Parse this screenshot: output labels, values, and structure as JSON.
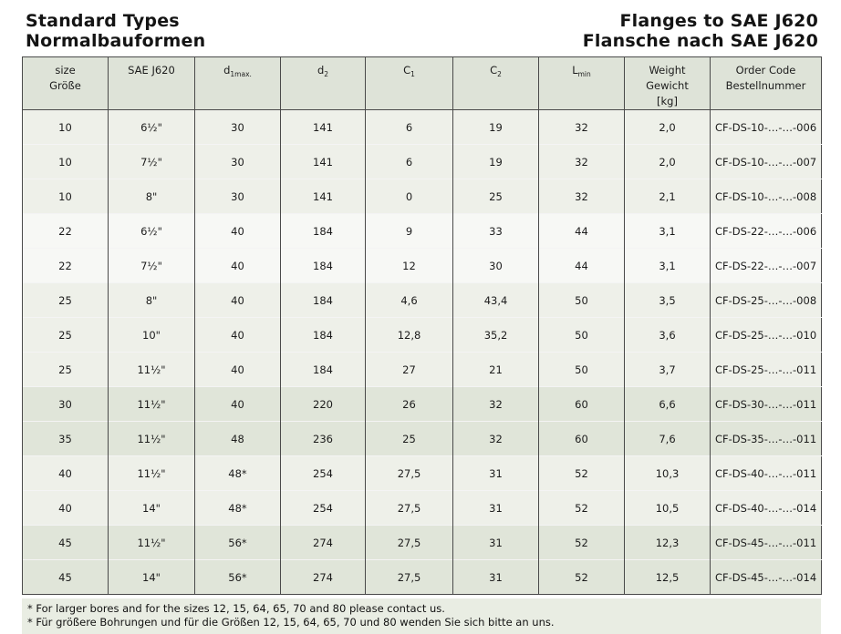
{
  "titles": {
    "left_line1": "Standard Types",
    "left_line2": "Normalbauformen",
    "right_line1": "Flanges to SAE J620",
    "right_line2": "Flansche nach SAE J620"
  },
  "table": {
    "headers": {
      "size": {
        "line1": "size",
        "line2": "Größe"
      },
      "sae": {
        "line1": "SAE J620"
      },
      "d1": {
        "base": "d",
        "sub": "1max."
      },
      "d2": {
        "base": "d",
        "sub": "2"
      },
      "c1": {
        "base": "C",
        "sub": "1"
      },
      "c2": {
        "base": "C",
        "sub": "2"
      },
      "lmin": {
        "base": "L",
        "sub": "min"
      },
      "weight": {
        "line1": "Weight",
        "line2": "Gewicht",
        "line3": "[kg]"
      },
      "code": {
        "line1": "Order Code",
        "line2": "Bestellnummer"
      }
    },
    "rows": [
      {
        "size": "10",
        "sae": "6½\"",
        "d1": "30",
        "d2": "141",
        "c1": "6",
        "c2": "19",
        "lmin": "32",
        "weight": "2,0",
        "code": "CF-DS-10-…-…-006",
        "shade": "A"
      },
      {
        "size": "10",
        "sae": "7½\"",
        "d1": "30",
        "d2": "141",
        "c1": "6",
        "c2": "19",
        "lmin": "32",
        "weight": "2,0",
        "code": "CF-DS-10-…-…-007",
        "shade": "A"
      },
      {
        "size": "10",
        "sae": "8\"",
        "d1": "30",
        "d2": "141",
        "c1": "0",
        "c2": "25",
        "lmin": "32",
        "weight": "2,1",
        "code": "CF-DS-10-…-…-008",
        "shade": "A"
      },
      {
        "size": "22",
        "sae": "6½\"",
        "d1": "40",
        "d2": "184",
        "c1": "9",
        "c2": "33",
        "lmin": "44",
        "weight": "3,1",
        "code": "CF-DS-22-…-…-006",
        "shade": "B"
      },
      {
        "size": "22",
        "sae": "7½\"",
        "d1": "40",
        "d2": "184",
        "c1": "12",
        "c2": "30",
        "lmin": "44",
        "weight": "3,1",
        "code": "CF-DS-22-…-…-007",
        "shade": "B"
      },
      {
        "size": "25",
        "sae": "8\"",
        "d1": "40",
        "d2": "184",
        "c1": "4,6",
        "c2": "43,4",
        "lmin": "50",
        "weight": "3,5",
        "code": "CF-DS-25-…-…-008",
        "shade": "A"
      },
      {
        "size": "25",
        "sae": "10\"",
        "d1": "40",
        "d2": "184",
        "c1": "12,8",
        "c2": "35,2",
        "lmin": "50",
        "weight": "3,6",
        "code": "CF-DS-25-…-…-010",
        "shade": "A"
      },
      {
        "size": "25",
        "sae": "11½\"",
        "d1": "40",
        "d2": "184",
        "c1": "27",
        "c2": "21",
        "lmin": "50",
        "weight": "3,7",
        "code": "CF-DS-25-…-…-011",
        "shade": "A"
      },
      {
        "size": "30",
        "sae": "11½\"",
        "d1": "40",
        "d2": "220",
        "c1": "26",
        "c2": "32",
        "lmin": "60",
        "weight": "6,6",
        "code": "CF-DS-30-…-…-011",
        "shade": "C"
      },
      {
        "size": "35",
        "sae": "11½\"",
        "d1": "48",
        "d2": "236",
        "c1": "25",
        "c2": "32",
        "lmin": "60",
        "weight": "7,6",
        "code": "CF-DS-35-…-…-011",
        "shade": "C"
      },
      {
        "size": "40",
        "sae": "11½\"",
        "d1": "48*",
        "d2": "254",
        "c1": "27,5",
        "c2": "31",
        "lmin": "52",
        "weight": "10,3",
        "code": "CF-DS-40-…-…-011",
        "shade": "A"
      },
      {
        "size": "40",
        "sae": "14\"",
        "d1": "48*",
        "d2": "254",
        "c1": "27,5",
        "c2": "31",
        "lmin": "52",
        "weight": "10,5",
        "code": "CF-DS-40-…-…-014",
        "shade": "A"
      },
      {
        "size": "45",
        "sae": "11½\"",
        "d1": "56*",
        "d2": "274",
        "c1": "27,5",
        "c2": "31",
        "lmin": "52",
        "weight": "12,3",
        "code": "CF-DS-45-…-…-011",
        "shade": "C"
      },
      {
        "size": "45",
        "sae": "14\"",
        "d1": "56*",
        "d2": "274",
        "c1": "27,5",
        "c2": "31",
        "lmin": "52",
        "weight": "12,5",
        "code": "CF-DS-45-…-…-014",
        "shade": "C"
      }
    ]
  },
  "footnotes": {
    "en": "* For larger bores and for the sizes 12, 15, 64, 65, 70 and 80 please contact us.",
    "de": "* Für größere Bohrungen und für die Größen 12, 15, 64, 65, 70 und 80 wenden Sie sich bitte an uns."
  },
  "colors": {
    "header_bg": "#dee3d8",
    "border": "#4a4a4a",
    "footnote_bg": "#e9ede3",
    "shades": {
      "A": "#eef0e9",
      "B": "#f7f8f5",
      "C": "#e0e5d9"
    }
  }
}
